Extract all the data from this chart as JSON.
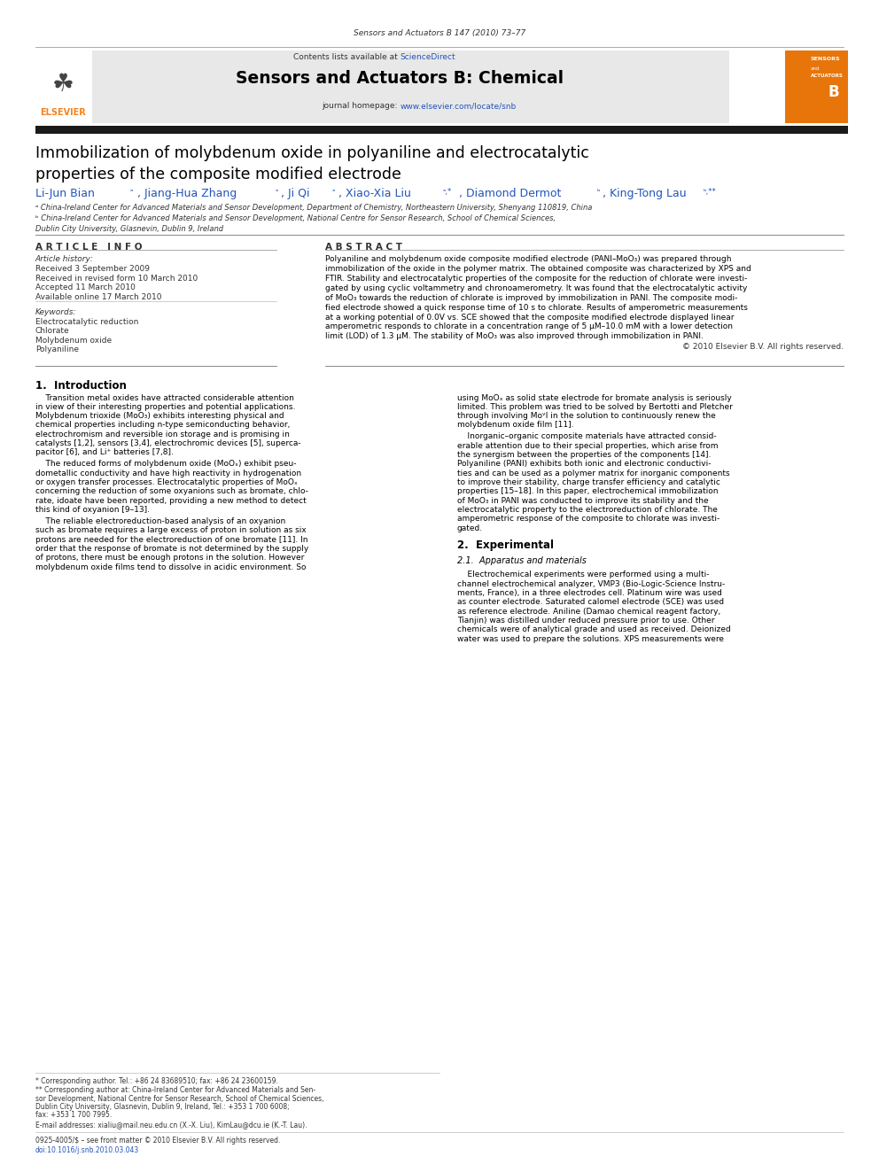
{
  "page_width": 9.92,
  "page_height": 13.23,
  "background_color": "#ffffff",
  "top_journal_ref": "Sensors and Actuators B 147 (2010) 73–77",
  "header_bg": "#e8e8e8",
  "contents_line": "Contents lists available at ScienceDirect",
  "sciencedirect_color": "#3366cc",
  "journal_title": "Sensors and Actuators B: Chemical",
  "journal_homepage_url": "www.elsevier.com/locate/snb",
  "paper_title_line1": "Immobilization of molybdenum oxide in polyaniline and electrocatalytic",
  "paper_title_line2": "properties of the composite modified electrode",
  "affil_a": "ᵃ China-Ireland Center for Advanced Materials and Sensor Development, Department of Chemistry, Northeastern University, Shenyang 110819, China",
  "affil_b": "ᵇ China-Ireland Center for Advanced Materials and Sensor Development, National Centre for Sensor Research, School of Chemical Sciences,",
  "affil_b2": "Dublin City University, Glasnevin, Dublin 9, Ireland",
  "section_article_info": "A R T I C L E   I N F O",
  "section_abstract": "A B S T R A C T",
  "article_history_title": "Article history:",
  "received1": "Received 3 September 2009",
  "received2": "Received in revised form 10 March 2010",
  "accepted": "Accepted 11 March 2010",
  "available": "Available online 17 March 2010",
  "keywords_title": "Keywords:",
  "kw1": "Electrocatalytic reduction",
  "kw2": "Chlorate",
  "kw3": "Molybdenum oxide",
  "kw4": "Polyaniline",
  "copyright": "© 2010 Elsevier B.V. All rights reserved.",
  "intro_heading": "1.  Introduction",
  "section2_heading": "2.  Experimental",
  "section21_heading": "2.1.  Apparatus and materials",
  "footer_email": "E-mail addresses: xialiu@mail.neu.edu.cn (X.-X. Liu), KimLau@dcu.ie (K.-T. Lau).",
  "footer_issn": "0925-4005/$ – see front matter © 2010 Elsevier B.V. All rights reserved.",
  "footer_doi": "doi:10.1016/j.snb.2010.03.043",
  "elsevier_orange": "#f5821f",
  "sensors_actuators_orange": "#e8750a"
}
